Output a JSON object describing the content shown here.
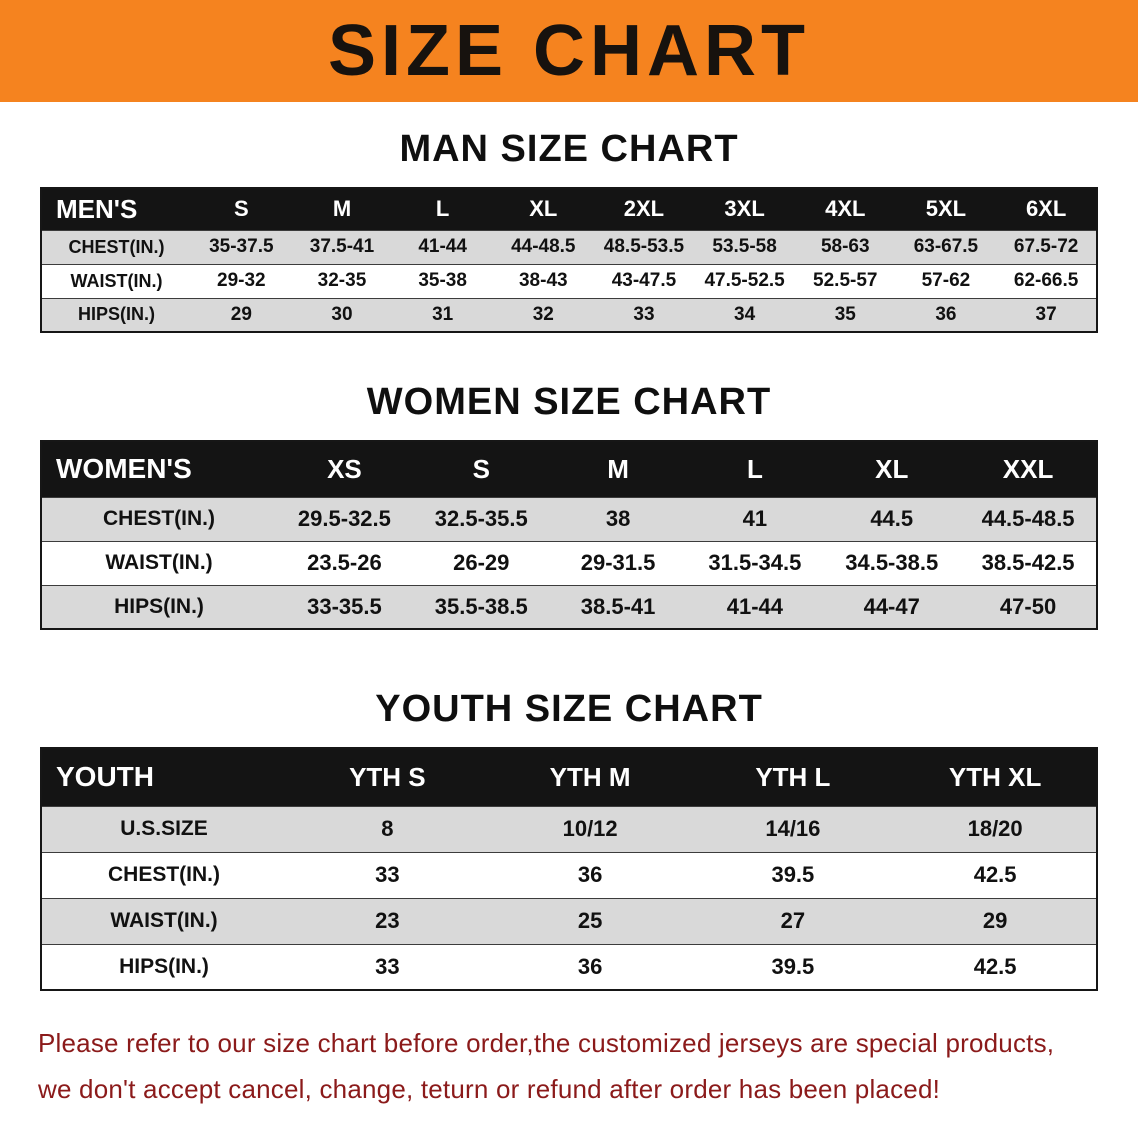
{
  "banner": {
    "title": "SIZE CHART"
  },
  "colors": {
    "banner_bg": "#F5831F",
    "header_bg": "#141414",
    "row_shade": "#D9D9D9",
    "notice_text": "#8B1A1A"
  },
  "sections": {
    "men": {
      "heading": "MAN SIZE CHART"
    },
    "women": {
      "heading": "WOMEN SIZE CHART"
    },
    "youth": {
      "heading": "YOUTH SIZE CHART"
    }
  },
  "tables": {
    "men": {
      "corner": "MEN'S",
      "columns": [
        "S",
        "M",
        "L",
        "XL",
        "2XL",
        "3XL",
        "4XL",
        "5XL",
        "6XL"
      ],
      "rows": [
        {
          "label": "CHEST(IN.)",
          "values": [
            "35-37.5",
            "37.5-41",
            "41-44",
            "44-48.5",
            "48.5-53.5",
            "53.5-58",
            "58-63",
            "63-67.5",
            "67.5-72"
          ]
        },
        {
          "label": "WAIST(IN.)",
          "values": [
            "29-32",
            "32-35",
            "35-38",
            "38-43",
            "43-47.5",
            "47.5-52.5",
            "52.5-57",
            "57-62",
            "62-66.5"
          ]
        },
        {
          "label": "HIPS(IN.)",
          "values": [
            "29",
            "30",
            "31",
            "32",
            "33",
            "34",
            "35",
            "36",
            "37"
          ]
        }
      ]
    },
    "women": {
      "corner": "WOMEN'S",
      "columns": [
        "XS",
        "S",
        "M",
        "L",
        "XL",
        "XXL"
      ],
      "rows": [
        {
          "label": "CHEST(IN.)",
          "values": [
            "29.5-32.5",
            "32.5-35.5",
            "38",
            "41",
            "44.5",
            "44.5-48.5"
          ]
        },
        {
          "label": "WAIST(IN.)",
          "values": [
            "23.5-26",
            "26-29",
            "29-31.5",
            "31.5-34.5",
            "34.5-38.5",
            "38.5-42.5"
          ]
        },
        {
          "label": "HIPS(IN.)",
          "values": [
            "33-35.5",
            "35.5-38.5",
            "38.5-41",
            "41-44",
            "44-47",
            "47-50"
          ]
        }
      ]
    },
    "youth": {
      "corner": "YOUTH",
      "columns": [
        "YTH S",
        "YTH M",
        "YTH L",
        "YTH XL"
      ],
      "rows": [
        {
          "label": "U.S.SIZE",
          "values": [
            "8",
            "10/12",
            "14/16",
            "18/20"
          ]
        },
        {
          "label": "CHEST(IN.)",
          "values": [
            "33",
            "36",
            "39.5",
            "42.5"
          ]
        },
        {
          "label": "WAIST(IN.)",
          "values": [
            "23",
            "25",
            "27",
            "29"
          ]
        },
        {
          "label": "HIPS(IN.)",
          "values": [
            "33",
            "36",
            "39.5",
            "42.5"
          ]
        }
      ]
    }
  },
  "footer": {
    "line1": "Please refer to our size chart before order,the customized jerseys are special products,",
    "line2": "we don't accept cancel, change, teturn or refund after order has been placed!"
  }
}
